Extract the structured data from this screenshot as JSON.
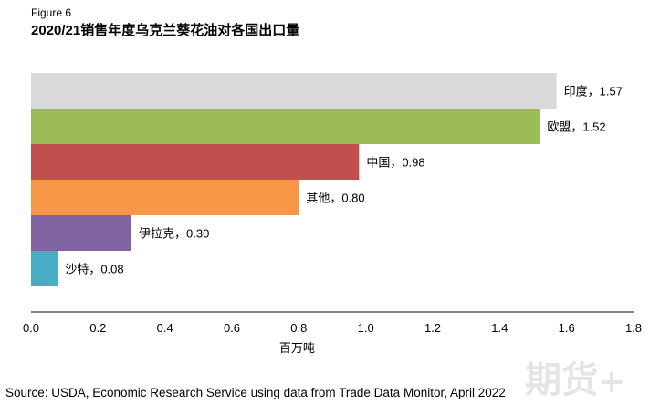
{
  "figure_label": "Figure 6",
  "source": "Source: USDA, Economic Research Service using data from Trade Data Monitor, April 2022",
  "watermark": {
    "text": "期货",
    "plus": "+"
  },
  "chart_data": {
    "type": "bar",
    "orientation": "horizontal",
    "title": "2020/21销售年度乌克兰葵花油对各国出口量",
    "xlabel": "百万吨",
    "ylabel": "",
    "xlim": [
      0,
      1.8
    ],
    "xticks": [
      "0.0",
      "0.2",
      "0.4",
      "0.6",
      "0.8",
      "1.0",
      "1.2",
      "1.4",
      "1.6",
      "1.8"
    ],
    "grid": false,
    "categories": [
      "印度",
      "欧盟",
      "中国",
      "其他",
      "伊拉克",
      "沙特"
    ],
    "values": [
      1.57,
      1.52,
      0.98,
      0.8,
      0.3,
      0.08
    ],
    "data_labels": [
      "印度，1.57",
      "欧盟，1.52",
      "中国，0.98",
      "其他，0.80",
      "伊拉克，0.30",
      "沙特，0.08"
    ],
    "colors": [
      "#d9d9d9",
      "#9bbb59",
      "#c0504d",
      "#f79646",
      "#8064a2",
      "#4bacc6"
    ]
  }
}
